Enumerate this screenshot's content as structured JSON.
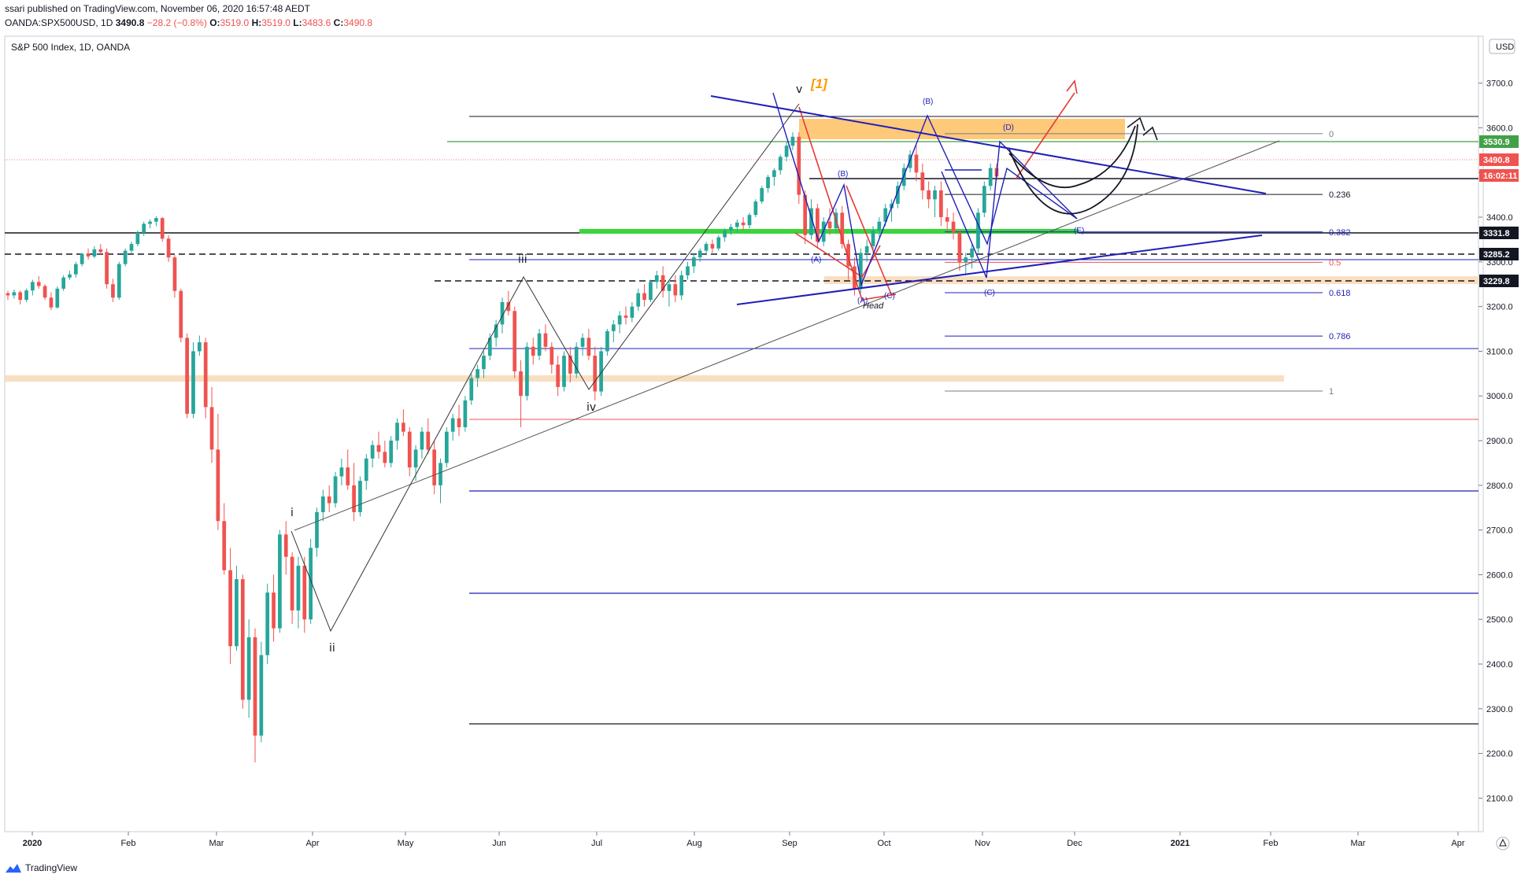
{
  "header": {
    "author": "ssari",
    "published": " published on TradingView.com, November 06, 2020 16:57:48 AEDT"
  },
  "ohlc": {
    "symbol": "OANDA:SPX500USD, 1D",
    "last": "3490.8",
    "change": "−28.2 (−0.8%)",
    "o": "3519.0",
    "h": "3519.0",
    "l": "3483.6",
    "c": "3490.8"
  },
  "footer": {
    "brand": "TradingView"
  },
  "chart_data": {
    "type": "candlestick",
    "title": "S&P 500 Index, 1D, OANDA",
    "currency": "USD",
    "x_labels": [
      "2020",
      "Feb",
      "Mar",
      "Apr",
      "May",
      "Jun",
      "Jul",
      "Aug",
      "Sep",
      "Oct",
      "Nov",
      "Dec",
      "2021",
      "Feb",
      "Mar",
      "Apr"
    ],
    "y_ticks": [
      2100,
      2200,
      2300,
      2400,
      2500,
      2600,
      2700,
      2800,
      2900,
      3000,
      3100,
      3200,
      3300,
      3400,
      3500,
      3600,
      3700
    ],
    "ylim": [
      2025,
      3805
    ],
    "price_badges": [
      {
        "value": "3530.9",
        "color": "#43a047"
      },
      {
        "value": "3490.8",
        "color": "#ef5350"
      },
      {
        "value": "16:02:11",
        "color": "#ef5350"
      },
      {
        "value": "3331.8",
        "color": "#131722"
      },
      {
        "value": "3285.2",
        "color": "#131722"
      },
      {
        "value": "3229.8",
        "color": "#131722"
      }
    ],
    "fib_levels": [
      {
        "label": "0",
        "price": 3587
      },
      {
        "label": "0.236",
        "price": 3451
      },
      {
        "label": "0.382",
        "price": 3367
      },
      {
        "label": "0.5",
        "price": 3299
      },
      {
        "label": "0.618",
        "price": 3231
      },
      {
        "label": "0.786",
        "price": 3134
      },
      {
        "label": "1",
        "price": 3011
      }
    ],
    "wave_labels": [
      "i",
      "ii",
      "iii",
      "iv",
      "v",
      "[1]"
    ],
    "pattern_labels": [
      "(A)",
      "(B)",
      "(C)",
      "(A)",
      "(B)",
      "(C)",
      "(B)",
      "(C)",
      "(D)",
      "(E)",
      "Head"
    ],
    "candles": [
      [
        3230,
        3235,
        3215,
        3225
      ],
      [
        3225,
        3238,
        3218,
        3232
      ],
      [
        3232,
        3236,
        3205,
        3215
      ],
      [
        3215,
        3240,
        3210,
        3236
      ],
      [
        3236,
        3260,
        3225,
        3255
      ],
      [
        3255,
        3268,
        3240,
        3246
      ],
      [
        3246,
        3250,
        3215,
        3220
      ],
      [
        3220,
        3232,
        3192,
        3198
      ],
      [
        3198,
        3245,
        3195,
        3240
      ],
      [
        3240,
        3270,
        3235,
        3265
      ],
      [
        3265,
        3280,
        3260,
        3272
      ],
      [
        3272,
        3300,
        3265,
        3295
      ],
      [
        3295,
        3320,
        3290,
        3318
      ],
      [
        3318,
        3330,
        3305,
        3312
      ],
      [
        3312,
        3335,
        3308,
        3328
      ],
      [
        3328,
        3340,
        3315,
        3322
      ],
      [
        3322,
        3330,
        3240,
        3250
      ],
      [
        3250,
        3262,
        3210,
        3220
      ],
      [
        3220,
        3300,
        3215,
        3295
      ],
      [
        3295,
        3330,
        3290,
        3325
      ],
      [
        3325,
        3345,
        3318,
        3340
      ],
      [
        3340,
        3370,
        3335,
        3365
      ],
      [
        3365,
        3390,
        3358,
        3385
      ],
      [
        3385,
        3395,
        3375,
        3390
      ],
      [
        3390,
        3402,
        3380,
        3398
      ],
      [
        3398,
        3400,
        3345,
        3352
      ],
      [
        3352,
        3360,
        3300,
        3310
      ],
      [
        3310,
        3315,
        3220,
        3235
      ],
      [
        3235,
        3240,
        3120,
        3130
      ],
      [
        3130,
        3140,
        2950,
        2960
      ],
      [
        2960,
        3120,
        2950,
        3100
      ],
      [
        3100,
        3135,
        3090,
        3120
      ],
      [
        3120,
        3130,
        2950,
        2975
      ],
      [
        2975,
        3020,
        2850,
        2880
      ],
      [
        2880,
        2960,
        2700,
        2720
      ],
      [
        2720,
        2760,
        2600,
        2610
      ],
      [
        2610,
        2660,
        2400,
        2440
      ],
      [
        2440,
        2620,
        2430,
        2590
      ],
      [
        2590,
        2600,
        2300,
        2320
      ],
      [
        2320,
        2500,
        2280,
        2460
      ],
      [
        2460,
        2480,
        2180,
        2240
      ],
      [
        2240,
        2450,
        2225,
        2420
      ],
      [
        2420,
        2580,
        2400,
        2560
      ],
      [
        2560,
        2600,
        2450,
        2480
      ],
      [
        2480,
        2700,
        2470,
        2690
      ],
      [
        2690,
        2720,
        2600,
        2640
      ],
      [
        2640,
        2650,
        2490,
        2520
      ],
      [
        2520,
        2640,
        2480,
        2620
      ],
      [
        2620,
        2640,
        2470,
        2500
      ],
      [
        2500,
        2680,
        2490,
        2660
      ],
      [
        2660,
        2750,
        2640,
        2740
      ],
      [
        2740,
        2790,
        2720,
        2775
      ],
      [
        2775,
        2800,
        2740,
        2760
      ],
      [
        2760,
        2830,
        2750,
        2820
      ],
      [
        2820,
        2860,
        2800,
        2840
      ],
      [
        2840,
        2880,
        2790,
        2800
      ],
      [
        2800,
        2850,
        2720,
        2740
      ],
      [
        2740,
        2820,
        2730,
        2810
      ],
      [
        2810,
        2870,
        2790,
        2860
      ],
      [
        2860,
        2900,
        2840,
        2890
      ],
      [
        2890,
        2920,
        2860,
        2875
      ],
      [
        2875,
        2900,
        2840,
        2850
      ],
      [
        2850,
        2910,
        2840,
        2900
      ],
      [
        2900,
        2950,
        2880,
        2940
      ],
      [
        2940,
        2970,
        2910,
        2920
      ],
      [
        2920,
        2930,
        2820,
        2840
      ],
      [
        2840,
        2890,
        2810,
        2880
      ],
      [
        2880,
        2930,
        2860,
        2920
      ],
      [
        2920,
        2950,
        2870,
        2880
      ],
      [
        2880,
        2900,
        2780,
        2800
      ],
      [
        2800,
        2860,
        2760,
        2850
      ],
      [
        2850,
        2930,
        2840,
        2920
      ],
      [
        2920,
        2960,
        2900,
        2950
      ],
      [
        2950,
        2980,
        2910,
        2930
      ],
      [
        2930,
        3000,
        2920,
        2990
      ],
      [
        2990,
        3050,
        2980,
        3040
      ],
      [
        3040,
        3070,
        3020,
        3060
      ],
      [
        3060,
        3100,
        3040,
        3090
      ],
      [
        3090,
        3140,
        3080,
        3130
      ],
      [
        3130,
        3170,
        3110,
        3160
      ],
      [
        3160,
        3220,
        3140,
        3210
      ],
      [
        3210,
        3235,
        3180,
        3190
      ],
      [
        3190,
        3200,
        3040,
        3055
      ],
      [
        3055,
        3080,
        2930,
        3000
      ],
      [
        3000,
        3120,
        2990,
        3110
      ],
      [
        3110,
        3130,
        3070,
        3090
      ],
      [
        3090,
        3150,
        3080,
        3140
      ],
      [
        3140,
        3160,
        3100,
        3110
      ],
      [
        3110,
        3120,
        3050,
        3070
      ],
      [
        3070,
        3090,
        3000,
        3020
      ],
      [
        3020,
        3100,
        3010,
        3090
      ],
      [
        3090,
        3110,
        3030,
        3050
      ],
      [
        3050,
        3120,
        3040,
        3110
      ],
      [
        3110,
        3140,
        3090,
        3130
      ],
      [
        3130,
        3150,
        3080,
        3090
      ],
      [
        3090,
        3110,
        2990,
        3010
      ],
      [
        3010,
        3110,
        3000,
        3100
      ],
      [
        3100,
        3150,
        3090,
        3145
      ],
      [
        3145,
        3170,
        3120,
        3160
      ],
      [
        3160,
        3190,
        3140,
        3180
      ],
      [
        3180,
        3200,
        3160,
        3175
      ],
      [
        3175,
        3210,
        3165,
        3200
      ],
      [
        3200,
        3240,
        3190,
        3230
      ],
      [
        3230,
        3250,
        3200,
        3215
      ],
      [
        3215,
        3260,
        3210,
        3255
      ],
      [
        3255,
        3280,
        3240,
        3270
      ],
      [
        3270,
        3290,
        3220,
        3235
      ],
      [
        3235,
        3260,
        3200,
        3250
      ],
      [
        3250,
        3270,
        3210,
        3225
      ],
      [
        3225,
        3280,
        3215,
        3270
      ],
      [
        3270,
        3300,
        3260,
        3290
      ],
      [
        3290,
        3320,
        3275,
        3310
      ],
      [
        3310,
        3330,
        3300,
        3325
      ],
      [
        3325,
        3345,
        3315,
        3340
      ],
      [
        3340,
        3350,
        3320,
        3330
      ],
      [
        3330,
        3360,
        3325,
        3355
      ],
      [
        3355,
        3375,
        3345,
        3370
      ],
      [
        3370,
        3385,
        3360,
        3378
      ],
      [
        3378,
        3395,
        3365,
        3388
      ],
      [
        3388,
        3400,
        3370,
        3382
      ],
      [
        3382,
        3410,
        3375,
        3405
      ],
      [
        3405,
        3440,
        3400,
        3435
      ],
      [
        3435,
        3470,
        3430,
        3465
      ],
      [
        3465,
        3495,
        3455,
        3490
      ],
      [
        3490,
        3510,
        3470,
        3505
      ],
      [
        3505,
        3540,
        3495,
        3535
      ],
      [
        3535,
        3570,
        3525,
        3560
      ],
      [
        3560,
        3590,
        3550,
        3580
      ],
      [
        3580,
        3590,
        3430,
        3450
      ],
      [
        3450,
        3460,
        3340,
        3360
      ],
      [
        3360,
        3440,
        3350,
        3420
      ],
      [
        3420,
        3430,
        3330,
        3345
      ],
      [
        3345,
        3400,
        3335,
        3390
      ],
      [
        3390,
        3420,
        3360,
        3375
      ],
      [
        3375,
        3420,
        3365,
        3410
      ],
      [
        3410,
        3425,
        3330,
        3340
      ],
      [
        3340,
        3350,
        3260,
        3290
      ],
      [
        3290,
        3310,
        3225,
        3240
      ],
      [
        3240,
        3330,
        3230,
        3320
      ],
      [
        3320,
        3350,
        3300,
        3335
      ],
      [
        3335,
        3380,
        3320,
        3370
      ],
      [
        3370,
        3400,
        3355,
        3390
      ],
      [
        3390,
        3430,
        3380,
        3420
      ],
      [
        3420,
        3440,
        3390,
        3430
      ],
      [
        3430,
        3480,
        3420,
        3470
      ],
      [
        3470,
        3520,
        3460,
        3510
      ],
      [
        3510,
        3550,
        3500,
        3540
      ],
      [
        3540,
        3560,
        3480,
        3500
      ],
      [
        3500,
        3520,
        3440,
        3460
      ],
      [
        3460,
        3480,
        3420,
        3440
      ],
      [
        3440,
        3470,
        3400,
        3460
      ],
      [
        3460,
        3480,
        3380,
        3400
      ],
      [
        3400,
        3420,
        3370,
        3390
      ],
      [
        3390,
        3410,
        3350,
        3365
      ],
      [
        3365,
        3370,
        3280,
        3300
      ],
      [
        3300,
        3320,
        3270,
        3310
      ],
      [
        3310,
        3340,
        3285,
        3330
      ],
      [
        3330,
        3420,
        3320,
        3410
      ],
      [
        3410,
        3480,
        3400,
        3470
      ],
      [
        3470,
        3520,
        3460,
        3510
      ],
      [
        3510,
        3519,
        3483,
        3491
      ]
    ]
  }
}
